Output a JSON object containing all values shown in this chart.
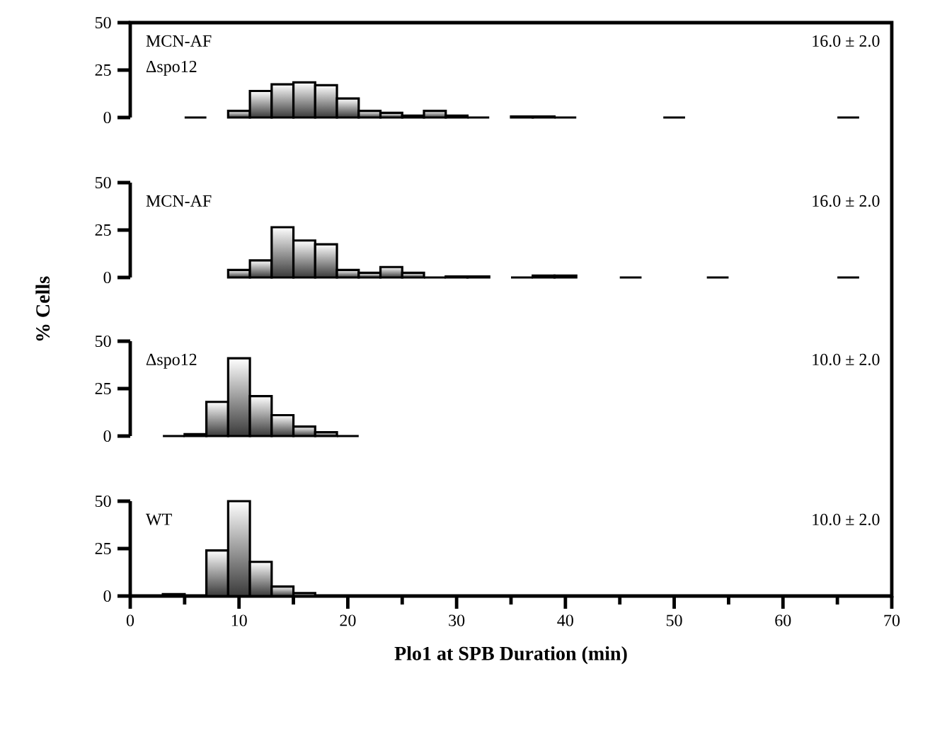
{
  "chart_data": [
    {
      "type": "histogram",
      "color": "#3a3a3a",
      "bins": [
        5,
        7,
        9,
        11,
        13,
        15,
        17,
        19,
        21,
        23,
        25,
        27,
        29,
        31,
        33,
        35,
        37,
        39,
        41,
        43,
        45,
        47,
        49,
        51,
        53,
        55,
        57,
        59,
        61,
        63,
        65,
        67
      ],
      "values": [
        0,
        null,
        3.5,
        14,
        17.5,
        18.5,
        17,
        10,
        3.5,
        2.5,
        1,
        3.5,
        1,
        0,
        null,
        0.5,
        0.5,
        0,
        null,
        null,
        null,
        null,
        0,
        null,
        null,
        null,
        null,
        null,
        null,
        null,
        0
      ],
      "xlim": [
        0,
        70
      ],
      "ylim": [
        0,
        50
      ],
      "yticks": [
        0,
        25,
        50
      ],
      "tick_labels": "y",
      "annotations": [
        "MCN-AF",
        "Δspo12",
        "16.0 ± 2.0"
      ]
    },
    {
      "type": "histogram",
      "color": "#3a3a3a",
      "bins": [
        9,
        11,
        13,
        15,
        17,
        19,
        21,
        23,
        25,
        27,
        29,
        31,
        33,
        35,
        37,
        39,
        41,
        43,
        45,
        47,
        49,
        51,
        53,
        55,
        57,
        59,
        61,
        63,
        65,
        67
      ],
      "values": [
        4,
        9,
        26.5,
        19.5,
        17.5,
        4,
        2.5,
        5.5,
        2.5,
        0,
        0.5,
        0.5,
        null,
        0,
        1,
        1,
        null,
        null,
        0,
        null,
        null,
        null,
        0,
        null,
        null,
        null,
        null,
        null,
        0
      ],
      "xlim": [
        0,
        70
      ],
      "ylim": [
        0,
        50
      ],
      "yticks": [
        0,
        25,
        50
      ],
      "tick_labels": "y",
      "ylabel": "% Cells",
      "annotations": [
        "MCN-AF",
        "16.0 ± 2.0"
      ]
    },
    {
      "type": "histogram",
      "color": "#3a3a3a",
      "bins": [
        3,
        5,
        7,
        9,
        11,
        13,
        15,
        17,
        19,
        21
      ],
      "values": [
        0,
        1,
        18,
        41,
        21,
        11,
        5,
        2,
        0
      ],
      "xlim": [
        0,
        70
      ],
      "ylim": [
        0,
        50
      ],
      "yticks": [
        0,
        25,
        50
      ],
      "tick_labels": "y",
      "annotations": [
        "Δspo12",
        "10.0 ± 2.0"
      ]
    },
    {
      "type": "histogram",
      "color": "#3a3a3a",
      "bins": [
        3,
        5,
        7,
        9,
        11,
        13,
        15,
        17
      ],
      "values": [
        1,
        0,
        24,
        50,
        18,
        5,
        1.5
      ],
      "xlim": [
        0,
        70
      ],
      "ylim": [
        0,
        50
      ],
      "yticks": [
        0,
        25,
        50
      ],
      "xticks": [
        0,
        {
          "value": 5,
          "label": null
        },
        10,
        {
          "value": 15,
          "label": null
        },
        20,
        {
          "value": 25,
          "label": null
        },
        30,
        {
          "value": 35,
          "label": null
        },
        40,
        {
          "value": 45,
          "label": null
        },
        50,
        {
          "value": 55,
          "label": null
        },
        60,
        {
          "value": 65,
          "label": null
        },
        70
      ],
      "xlabel": "Plo1 at SPB Duration (min)",
      "annotations": [
        "WT",
        "10.0 ± 2.0"
      ]
    }
  ]
}
